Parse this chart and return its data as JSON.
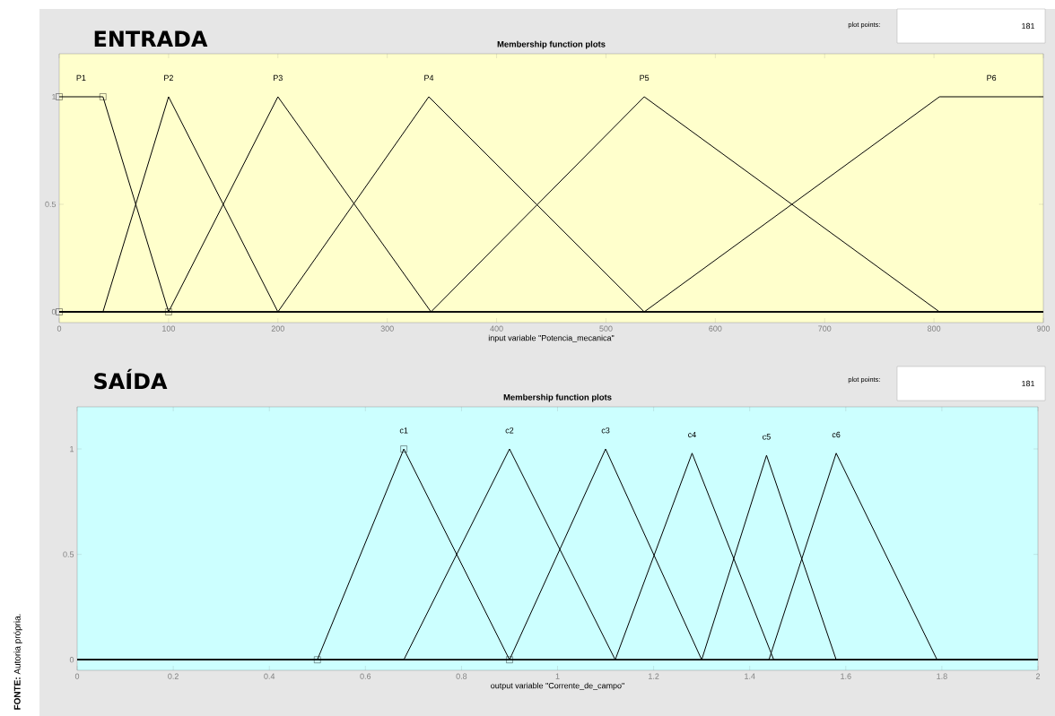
{
  "chart_data": [
    {
      "type": "line",
      "title": "ENTRADA",
      "subtitle": "Membership function plots",
      "xlabel": "input variable \"Potencia_mecanica\"",
      "xlim": [
        0,
        900
      ],
      "ylim": [
        -0.05,
        1.2
      ],
      "xticks": [
        0,
        100,
        200,
        300,
        400,
        500,
        600,
        700,
        800,
        900
      ],
      "yticks": [
        0,
        0.5,
        1
      ],
      "legend": false,
      "grid": false,
      "series": [
        {
          "name": "P1",
          "color": "#000000",
          "x": [
            0,
            40,
            100,
            900
          ],
          "values": [
            1,
            1,
            0,
            0
          ]
        },
        {
          "name": "P2",
          "color": "#000000",
          "x": [
            0,
            40,
            100,
            200,
            900
          ],
          "values": [
            0,
            0,
            1,
            0,
            0
          ]
        },
        {
          "name": "P3",
          "color": "#000000",
          "x": [
            0,
            100,
            200,
            340,
            900
          ],
          "values": [
            0,
            0,
            1,
            0,
            0
          ]
        },
        {
          "name": "P4",
          "color": "#000000",
          "x": [
            0,
            200,
            338,
            535,
            900
          ],
          "values": [
            0,
            0,
            1,
            0,
            0
          ]
        },
        {
          "name": "P5",
          "color": "#000000",
          "x": [
            0,
            340,
            535,
            805,
            900
          ],
          "values": [
            0,
            0,
            1,
            0,
            0
          ]
        },
        {
          "name": "P6",
          "color": "#000000",
          "x": [
            0,
            535,
            805,
            900
          ],
          "values": [
            0,
            0,
            1,
            1
          ]
        },
        {
          "type": "scatter",
          "marker": "square",
          "color": "#000000",
          "x": [
            0,
            40,
            0,
            100
          ],
          "values": [
            1,
            1,
            0,
            0
          ]
        }
      ],
      "annotations": [
        "plot points:",
        "181"
      ]
    },
    {
      "type": "line",
      "title": "SAÍDA",
      "subtitle": "Membership function plots",
      "xlabel": "output variable \"Corrente_de_campo\"",
      "xlim": [
        0,
        2
      ],
      "ylim": [
        -0.05,
        1.2
      ],
      "xticks": [
        0,
        0.2,
        0.4,
        0.6,
        0.8,
        1,
        1.2,
        1.4,
        1.6,
        1.8,
        2
      ],
      "yticks": [
        0,
        0.5,
        1
      ],
      "legend": false,
      "grid": false,
      "series": [
        {
          "name": "c1",
          "color": "#000000",
          "x": [
            0,
            0.5,
            0.68,
            0.9,
            2
          ],
          "values": [
            0,
            0,
            1,
            0,
            0
          ]
        },
        {
          "name": "c2",
          "color": "#000000",
          "x": [
            0,
            0.68,
            0.9,
            1.12,
            2
          ],
          "values": [
            0,
            0,
            1,
            0,
            0
          ]
        },
        {
          "name": "c3",
          "color": "#000000",
          "x": [
            0,
            0.9,
            1.1,
            1.3,
            2
          ],
          "values": [
            0,
            0,
            1,
            0,
            0
          ]
        },
        {
          "name": "c4",
          "color": "#000000",
          "x": [
            0,
            1.12,
            1.28,
            1.45,
            2
          ],
          "values": [
            0,
            0,
            0.98,
            0,
            0
          ]
        },
        {
          "name": "c5",
          "color": "#000000",
          "x": [
            0,
            1.3,
            1.435,
            1.58,
            2
          ],
          "values": [
            0,
            0,
            0.97,
            0,
            0
          ]
        },
        {
          "name": "c6",
          "color": "#000000",
          "x": [
            0,
            1.44,
            1.58,
            1.79,
            2
          ],
          "values": [
            0,
            0,
            0.98,
            0,
            0
          ]
        },
        {
          "type": "scatter",
          "marker": "square",
          "color": "#000000",
          "x": [
            0.5,
            0.68,
            0.9
          ],
          "values": [
            0,
            1,
            0
          ]
        }
      ],
      "annotations": [
        "plot points:",
        "181",
        "**FONTE:** Autoria própria."
      ]
    }
  ]
}
